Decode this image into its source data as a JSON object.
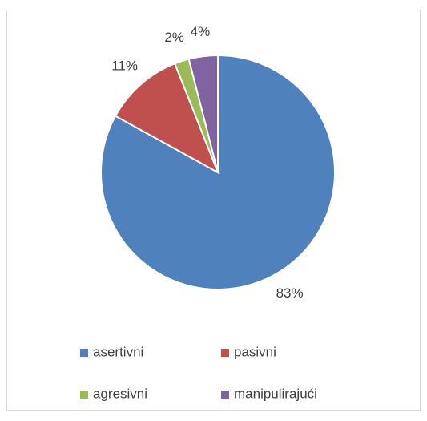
{
  "chart_data": {
    "type": "pie",
    "categories": [
      "asertivni",
      "pasivni",
      "agresivni",
      "manipulirajući"
    ],
    "values": [
      83,
      11,
      2,
      4
    ],
    "value_labels": [
      "83%",
      "11%",
      "2%",
      "4%"
    ],
    "colors": [
      "#4f81bd",
      "#c0504d",
      "#9bbb59",
      "#8064a2"
    ],
    "legend": "bottom"
  }
}
